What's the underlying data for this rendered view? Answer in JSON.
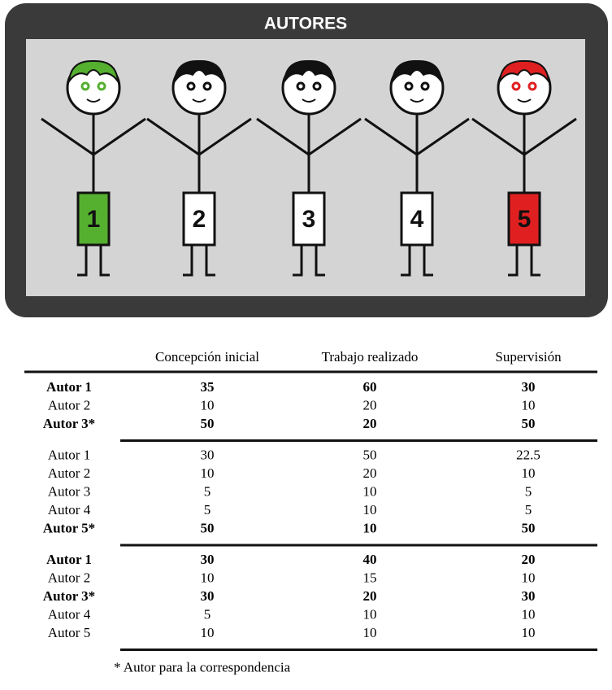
{
  "header": {
    "title": "AUTORES"
  },
  "figures": [
    {
      "label": "1",
      "color": "#55b030"
    },
    {
      "label": "2",
      "color": "#ffffff"
    },
    {
      "label": "3",
      "color": "#ffffff"
    },
    {
      "label": "4",
      "color": "#ffffff"
    },
    {
      "label": "5",
      "color": "#e02020"
    }
  ],
  "table": {
    "columns": [
      "Concepción inicial",
      "Trabajo realizado",
      "Supervisión"
    ],
    "groups": [
      {
        "rows": [
          {
            "name": "Autor 1",
            "bold": true,
            "values": [
              35,
              60,
              30
            ]
          },
          {
            "name": "Autor 2",
            "bold": false,
            "values": [
              10,
              20,
              10
            ]
          },
          {
            "name": "Autor 3*",
            "bold": true,
            "values": [
              50,
              20,
              50
            ]
          }
        ]
      },
      {
        "rows": [
          {
            "name": "Autor 1",
            "bold": false,
            "values": [
              30,
              50,
              22.5
            ]
          },
          {
            "name": "Autor 2",
            "bold": false,
            "values": [
              10,
              20,
              10
            ]
          },
          {
            "name": "Autor 3",
            "bold": false,
            "values": [
              5,
              10,
              5
            ]
          },
          {
            "name": "Autor 4",
            "bold": false,
            "values": [
              5,
              10,
              5
            ]
          },
          {
            "name": "Autor 5*",
            "bold": true,
            "values": [
              50,
              10,
              50
            ]
          }
        ]
      },
      {
        "rows": [
          {
            "name": "Autor 1",
            "bold": true,
            "values": [
              30,
              40,
              20
            ]
          },
          {
            "name": "Autor 2",
            "bold": false,
            "values": [
              10,
              15,
              10
            ]
          },
          {
            "name": "Autor 3*",
            "bold": true,
            "values": [
              30,
              20,
              30
            ]
          },
          {
            "name": "Autor 4",
            "bold": false,
            "values": [
              5,
              10,
              10
            ]
          },
          {
            "name": "Autor 5",
            "bold": false,
            "values": [
              10,
              10,
              10
            ]
          }
        ]
      }
    ],
    "footnote": "* Autor para la correspondencia"
  }
}
